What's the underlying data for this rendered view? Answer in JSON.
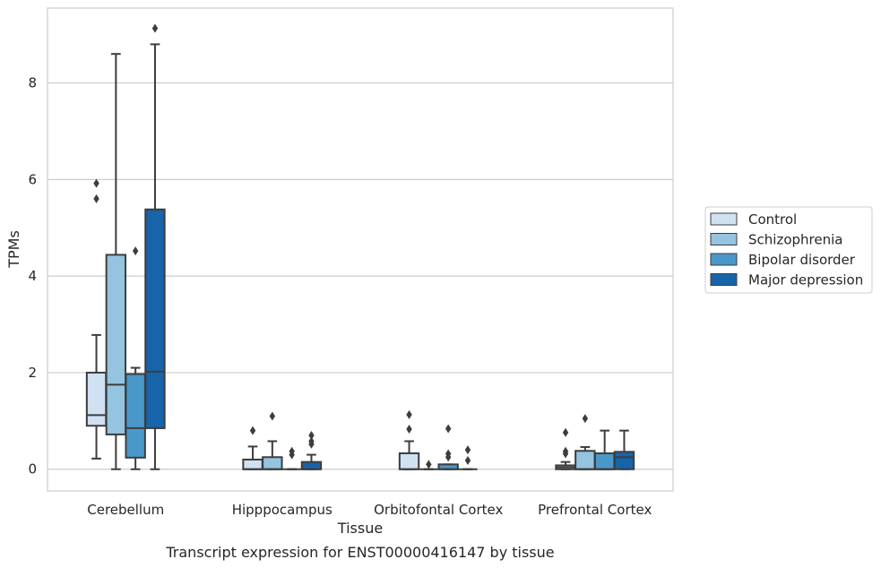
{
  "chart_data": {
    "type": "boxplot",
    "xlabel": "Tissue",
    "ylabel": "TPMs",
    "caption": "Transcript expression for ENST00000416147 by tissue",
    "categories": [
      "Cerebellum",
      "Hipppocampus",
      "Orbitofontal Cortex",
      "Prefrontal Cortex"
    ],
    "ylim": [
      -0.45,
      9.55
    ],
    "yticks": [
      0,
      2,
      4,
      6,
      8
    ],
    "grid": true,
    "legend_position": "right",
    "series": [
      {
        "name": "Control",
        "color": "#d0e1f2",
        "boxes": [
          {
            "whislo": 0.22,
            "q1": 0.9,
            "med": 1.12,
            "q3": 2.0,
            "whishi": 2.78,
            "fliers": [
              5.6,
              5.92
            ]
          },
          {
            "whislo": 0.0,
            "q1": 0.0,
            "med": 0.0,
            "q3": 0.2,
            "whishi": 0.47,
            "fliers": [
              0.8
            ]
          },
          {
            "whislo": 0.0,
            "q1": 0.0,
            "med": 0.0,
            "q3": 0.33,
            "whishi": 0.58,
            "fliers": [
              0.83,
              1.13
            ]
          },
          {
            "whislo": 0.0,
            "q1": 0.0,
            "med": 0.04,
            "q3": 0.08,
            "whishi": 0.15,
            "fliers": [
              0.32,
              0.37,
              0.76
            ]
          }
        ]
      },
      {
        "name": "Schizophrenia",
        "color": "#94c4df",
        "boxes": [
          {
            "whislo": 0.0,
            "q1": 0.72,
            "med": 1.75,
            "q3": 4.44,
            "whishi": 8.6,
            "fliers": []
          },
          {
            "whislo": 0.0,
            "q1": 0.0,
            "med": 0.0,
            "q3": 0.25,
            "whishi": 0.58,
            "fliers": [
              1.1
            ]
          },
          {
            "whislo": 0.0,
            "q1": 0.0,
            "med": 0.0,
            "q3": 0.0,
            "whishi": 0.0,
            "fliers": [
              0.1
            ]
          },
          {
            "whislo": 0.0,
            "q1": 0.0,
            "med": 0.0,
            "q3": 0.38,
            "whishi": 0.46,
            "fliers": [
              1.05
            ]
          }
        ]
      },
      {
        "name": "Bipolar disorder",
        "color": "#4a98c9",
        "boxes": [
          {
            "whislo": 0.0,
            "q1": 0.24,
            "med": 0.85,
            "q3": 1.97,
            "whishi": 2.1,
            "fliers": [
              4.52
            ]
          },
          {
            "whislo": 0.0,
            "q1": 0.0,
            "med": 0.0,
            "q3": 0.0,
            "whishi": 0.0,
            "fliers": [
              0.3,
              0.37
            ]
          },
          {
            "whislo": 0.0,
            "q1": 0.0,
            "med": 0.0,
            "q3": 0.1,
            "whishi": 0.1,
            "fliers": [
              0.25,
              0.32,
              0.84
            ]
          },
          {
            "whislo": 0.0,
            "q1": 0.0,
            "med": 0.0,
            "q3": 0.33,
            "whishi": 0.8,
            "fliers": []
          }
        ]
      },
      {
        "name": "Major depression",
        "color": "#1764ab",
        "boxes": [
          {
            "whislo": 0.0,
            "q1": 0.85,
            "med": 2.02,
            "q3": 5.38,
            "whishi": 8.8,
            "fliers": [
              9.13
            ]
          },
          {
            "whislo": 0.0,
            "q1": 0.0,
            "med": 0.0,
            "q3": 0.15,
            "whishi": 0.3,
            "fliers": [
              0.52,
              0.58,
              0.7
            ]
          },
          {
            "whislo": 0.0,
            "q1": 0.0,
            "med": 0.0,
            "q3": 0.0,
            "whishi": 0.0,
            "fliers": [
              0.18,
              0.4
            ]
          },
          {
            "whislo": 0.0,
            "q1": 0.0,
            "med": 0.25,
            "q3": 0.36,
            "whishi": 0.8,
            "fliers": []
          }
        ]
      }
    ]
  }
}
